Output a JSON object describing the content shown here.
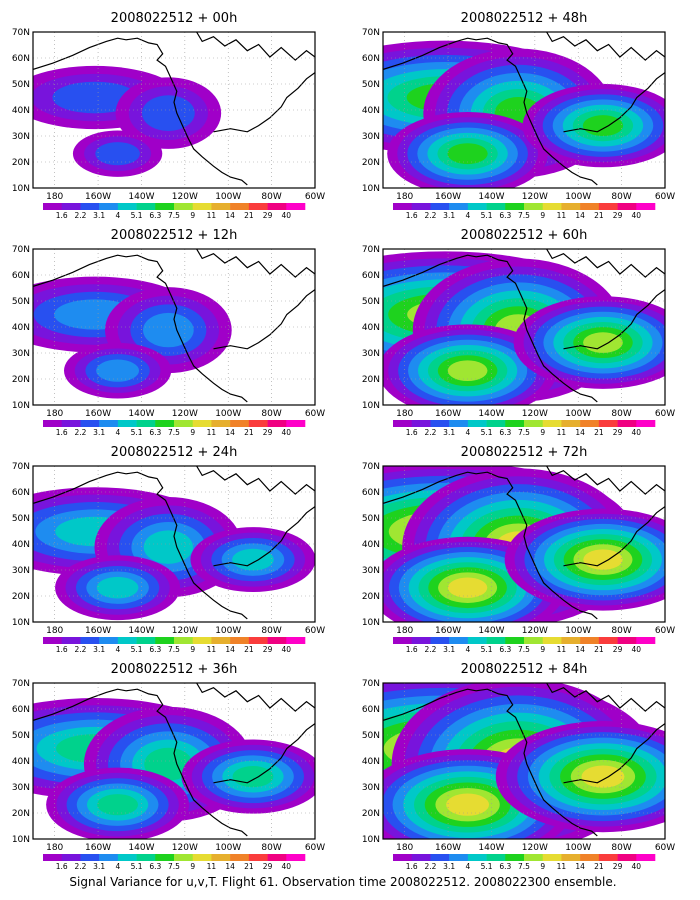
{
  "caption": "Signal Variance for u,v,T. Flight 61. Observation time 2008022512. 2008022300 ensemble.",
  "lat_ticks": [
    "70N",
    "60N",
    "50N",
    "40N",
    "30N",
    "20N",
    "10N"
  ],
  "lon_ticks": [
    "180",
    "160W",
    "140W",
    "120W",
    "100W",
    "80W",
    "60W"
  ],
  "colorbar": {
    "labels": [
      "1.6",
      "2.2",
      "3.1",
      "4",
      "5.1",
      "6.3",
      "7.5",
      "9",
      "11",
      "14",
      "21",
      "29",
      "40"
    ],
    "colors": [
      "#a000c8",
      "#7814dc",
      "#2850f0",
      "#1e8cf0",
      "#00c8c8",
      "#00d28c",
      "#1ed21e",
      "#a0e632",
      "#e6dc32",
      "#e6af2d",
      "#f08228",
      "#fa3c3c",
      "#f00082",
      "#ff00c8"
    ]
  },
  "land_color": "#ffffff",
  "panels": [
    {
      "title": "2008022512 + 00h",
      "level": 0
    },
    {
      "title": "2008022512 + 48h",
      "level": 4
    },
    {
      "title": "2008022512 + 12h",
      "level": 1
    },
    {
      "title": "2008022512 + 60h",
      "level": 5
    },
    {
      "title": "2008022512 + 24h",
      "level": 2
    },
    {
      "title": "2008022512 + 72h",
      "level": 6
    },
    {
      "title": "2008022512 + 36h",
      "level": 3
    },
    {
      "title": "2008022512 + 84h",
      "level": 7
    }
  ]
}
